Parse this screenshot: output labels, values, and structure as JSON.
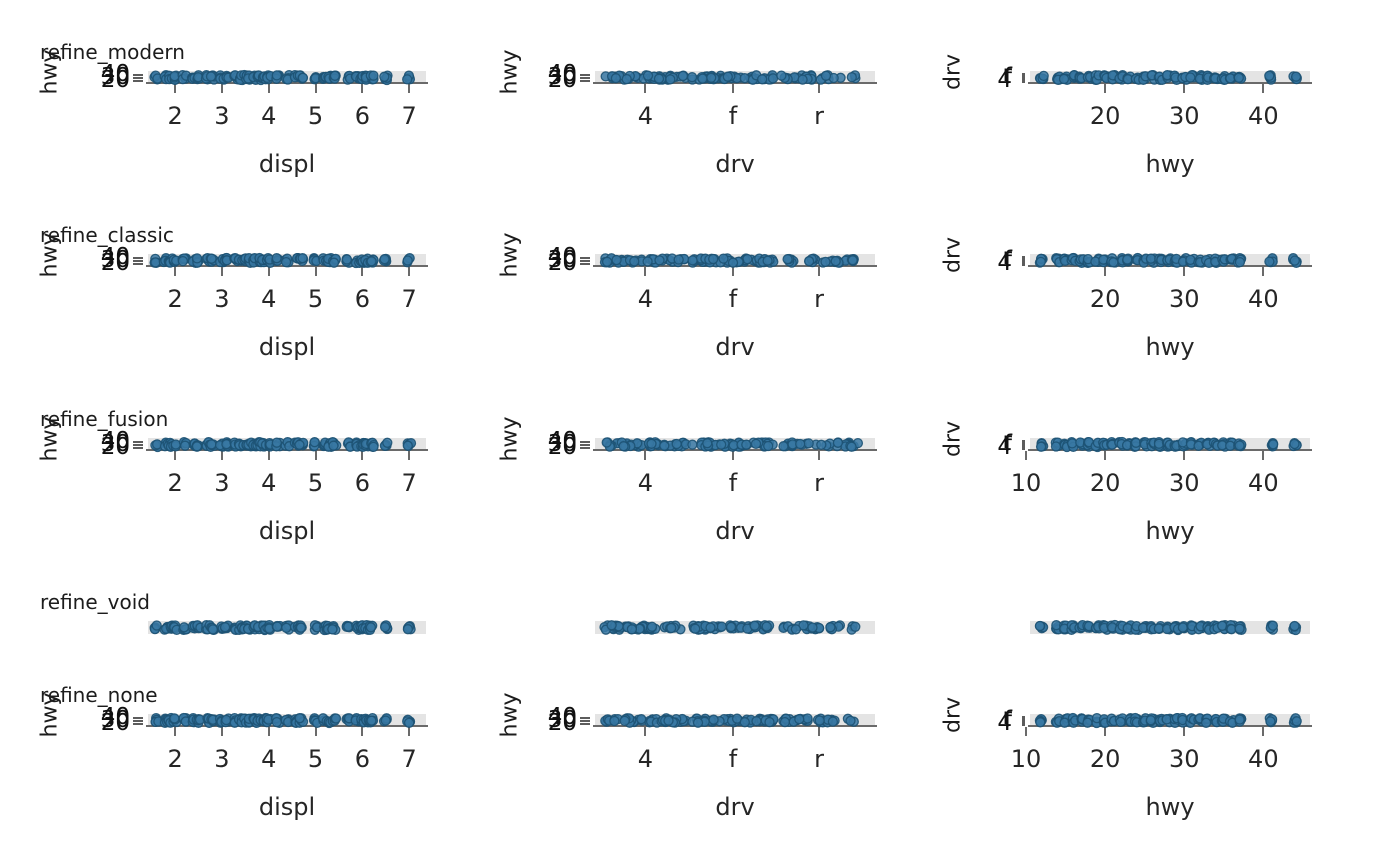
{
  "figure": {
    "background": "#ffffff",
    "point_fill": "#3878a3",
    "point_stroke": "#1d5273",
    "band_color": "#e4e4e4",
    "axis_color": "#6a6a6a",
    "text_color": "#1c1c1c"
  },
  "rows": [
    {
      "title": "refine_modern",
      "show_axes": true,
      "col3_xticks": [
        "20",
        "30",
        "40"
      ]
    },
    {
      "title": "refine_classic",
      "show_axes": true,
      "col3_xticks": [
        "20",
        "30",
        "40"
      ]
    },
    {
      "title": "refine_fusion",
      "show_axes": true,
      "col3_xticks": [
        "10",
        "20",
        "30",
        "40"
      ]
    },
    {
      "title": "refine_void",
      "show_axes": false,
      "col3_xticks": []
    },
    {
      "title": "refine_none",
      "show_axes": true,
      "col3_xticks": [
        "10",
        "20",
        "30",
        "40"
      ]
    }
  ],
  "chart_data": {
    "type": "scatter",
    "description": "Grid of 5 theme variants (rows) x 3 panels (cols) of the mpg data; every panel is vertically squashed so points form a single horizontal strip",
    "facets": [
      "refine_modern",
      "refine_classic",
      "refine_fusion",
      "refine_void",
      "refine_none"
    ],
    "panels": [
      {
        "xlabel": "displ",
        "ylabel": "hwy",
        "xticks": [
          "2",
          "3",
          "4",
          "5",
          "6",
          "7"
        ],
        "ytick_labels": [
          "20",
          "30",
          "40"
        ],
        "xlim": [
          1.42,
          7.36
        ],
        "x_values": [
          1.6,
          1.8,
          1.9,
          2.0,
          2.2,
          2.4,
          2.5,
          2.7,
          2.8,
          3.0,
          3.1,
          3.3,
          3.4,
          3.5,
          3.6,
          3.7,
          3.8,
          3.9,
          4.0,
          4.2,
          4.4,
          4.6,
          4.7,
          5.0,
          5.2,
          5.3,
          5.4,
          5.7,
          5.9,
          6.0,
          6.1,
          6.2,
          6.5,
          7.0
        ]
      },
      {
        "xlabel": "drv",
        "ylabel": "hwy",
        "xticks": [
          "4",
          "f",
          "r"
        ],
        "ytick_labels": [
          "20",
          "30",
          "40"
        ],
        "categories": [
          "4",
          "f",
          "r"
        ]
      },
      {
        "xlabel": "hwy",
        "ylabel": "drv",
        "xticks": [
          "10",
          "20",
          "30",
          "40"
        ],
        "ytick_labels": [
          "4",
          "f",
          "r"
        ],
        "xlim": [
          10.5,
          45.9
        ],
        "x_values": [
          12,
          14,
          15,
          16,
          17,
          18,
          19,
          20,
          21,
          22,
          23,
          24,
          25,
          26,
          27,
          28,
          29,
          30,
          31,
          32,
          33,
          34,
          35,
          36,
          37,
          41,
          44
        ]
      }
    ]
  }
}
